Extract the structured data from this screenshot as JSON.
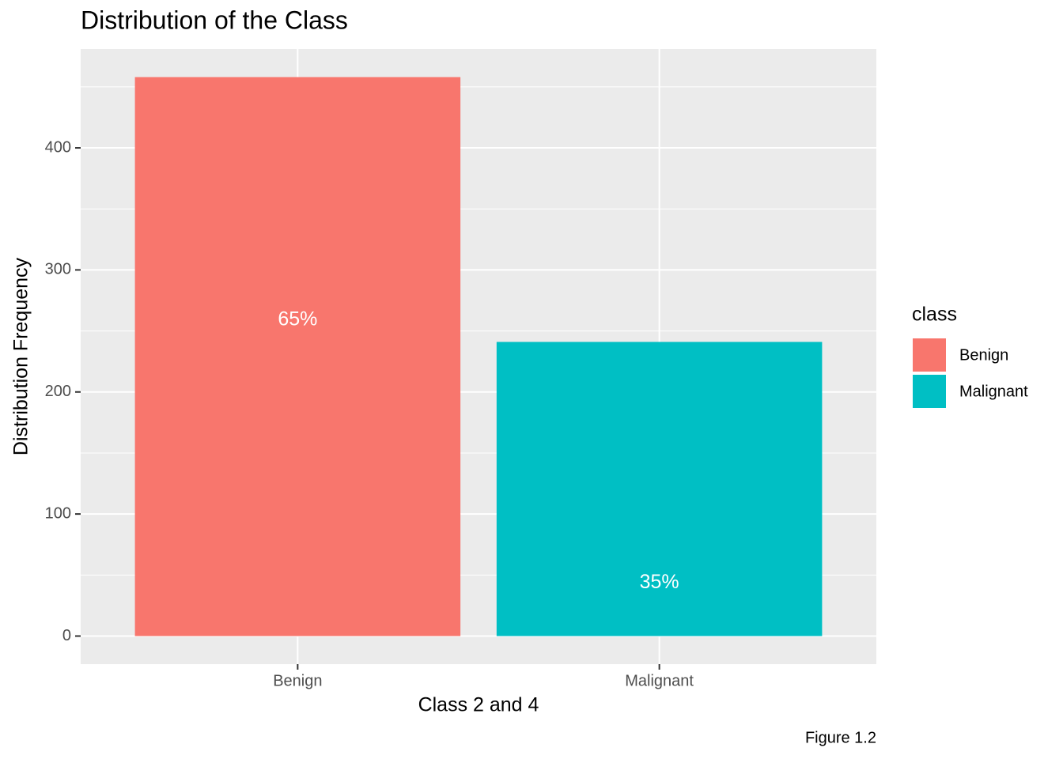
{
  "chart_data": {
    "type": "bar",
    "title": "Distribution of the Class",
    "x_label": "Class 2 and 4",
    "y_label": "Distribution Frequency",
    "categories": [
      "Benign",
      "Malignant"
    ],
    "series": [
      {
        "name": "Benign",
        "color": "#f8766d",
        "values": [
          458,
          null
        ]
      },
      {
        "name": "Malignant",
        "color": "#00bfc4",
        "values": [
          null,
          241
        ]
      }
    ],
    "annotations": [
      "65%",
      "35%"
    ],
    "legend_title": "class",
    "legend": "right",
    "caption": "Figure 1.2",
    "ylim": [
      -23,
      481
    ],
    "yticks": [
      0,
      100,
      200,
      300,
      400
    ],
    "grid": true
  }
}
